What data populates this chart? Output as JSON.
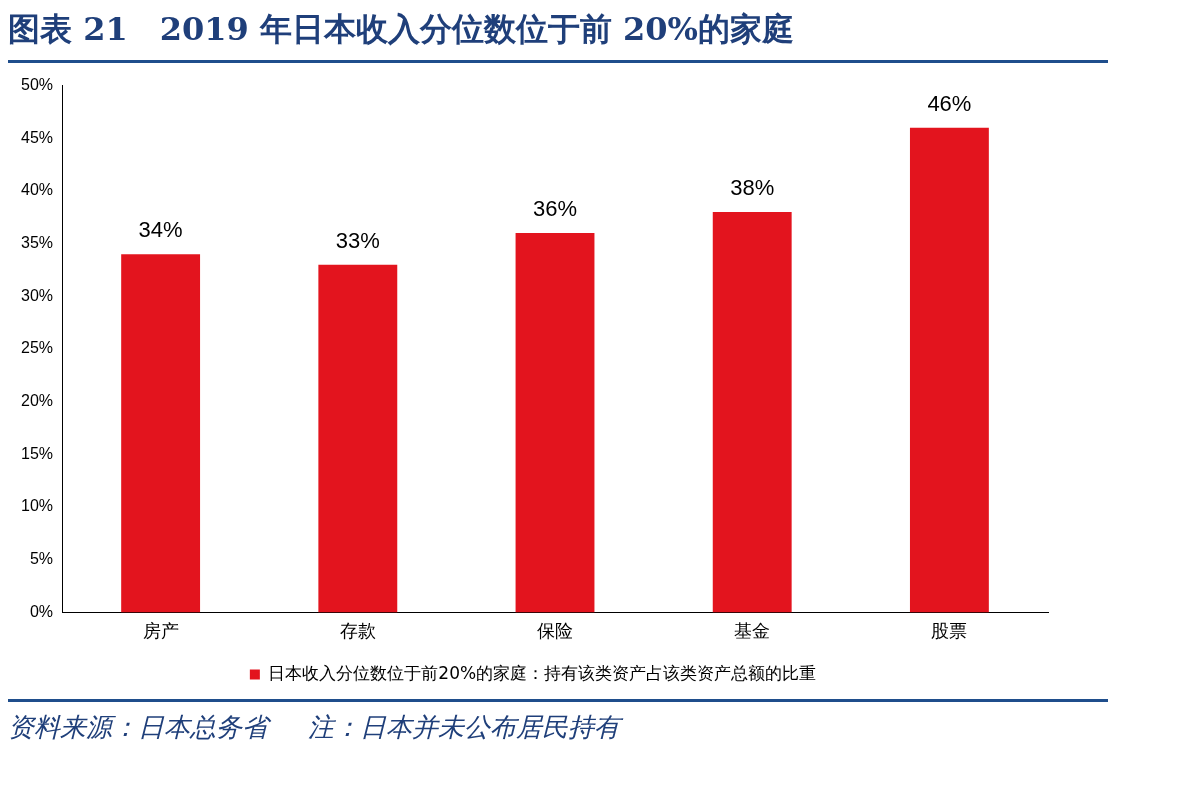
{
  "chart_data": {
    "type": "bar",
    "title": "图表 21　2019 年日本收入分位数位于前 20%的家庭",
    "categories": [
      "房产",
      "存款",
      "保险",
      "基金",
      "股票"
    ],
    "series": [
      {
        "name": "日本收入分位数位于前20%的家庭：持有该类资产占该类资产总额的比重",
        "color": "#e3141e",
        "values": [
          34,
          33,
          36,
          38,
          46
        ],
        "value_labels": [
          "34%",
          "33%",
          "36%",
          "38%",
          "46%"
        ]
      }
    ],
    "ylim": [
      0,
      50
    ],
    "yticks": [
      {
        "value": 0,
        "label": "0%"
      },
      {
        "value": 5,
        "label": "5%"
      },
      {
        "value": 10,
        "label": "10%"
      },
      {
        "value": 15,
        "label": "15%"
      },
      {
        "value": 20,
        "label": "20%"
      },
      {
        "value": 25,
        "label": "25%"
      },
      {
        "value": 30,
        "label": "30%"
      },
      {
        "value": 35,
        "label": "35%"
      },
      {
        "value": 40,
        "label": "40%"
      },
      {
        "value": 45,
        "label": "45%"
      },
      {
        "value": 50,
        "label": "50%"
      }
    ],
    "grid": false,
    "legend": "bottom",
    "annotations": [
      "资料来源：日本总务省",
      "注：日本并未公布居民持有"
    ]
  }
}
